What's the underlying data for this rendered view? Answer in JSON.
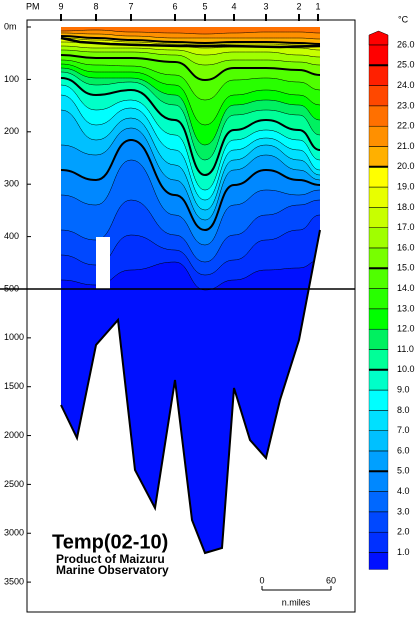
{
  "header": {
    "station_prefix": "PM",
    "stations": [
      "9",
      "8",
      "7",
      "6",
      "5",
      "4",
      "3",
      "2",
      "1"
    ]
  },
  "depth_axis": {
    "ticks": [
      {
        "value": 0,
        "label": "0m"
      },
      100,
      200,
      300,
      400,
      500,
      1000,
      1500,
      2000,
      2500,
      3000,
      3500
    ]
  },
  "colorbar": {
    "unit": "°C",
    "levels": [
      {
        "value": 26,
        "label": "26.0"
      },
      {
        "value": 25,
        "label": "25.0"
      },
      {
        "value": 24,
        "label": "24.0"
      },
      {
        "value": 23,
        "label": "23.0"
      },
      {
        "value": 22,
        "label": "22.0"
      },
      {
        "value": 21,
        "label": "21.0"
      },
      {
        "value": 20,
        "label": "20.0"
      },
      {
        "value": 19,
        "label": "19.0"
      },
      {
        "value": 18,
        "label": "18.0"
      },
      {
        "value": 17,
        "label": "17.0"
      },
      {
        "value": 16,
        "label": "16.0"
      },
      {
        "value": 15,
        "label": "15.0"
      },
      {
        "value": 14,
        "label": "14.0"
      },
      {
        "value": 13,
        "label": "13.0"
      },
      {
        "value": 12,
        "label": "12.0"
      },
      {
        "value": 11,
        "label": "11.0"
      },
      {
        "value": 10,
        "label": "10.0"
      },
      {
        "value": 9,
        "label": "9.0"
      },
      {
        "value": 8,
        "label": "8.0"
      },
      {
        "value": 7,
        "label": "7.0"
      },
      {
        "value": 6,
        "label": "6.0"
      },
      {
        "value": 5,
        "label": "5.0"
      },
      {
        "value": 4,
        "label": "4.0"
      },
      {
        "value": 3,
        "label": "3.0"
      },
      {
        "value": 2,
        "label": "2.0"
      },
      {
        "value": 1,
        "label": "1.0"
      }
    ],
    "colors": [
      "#ff0000",
      "#ff0000",
      "#ff2000",
      "#ff4800",
      "#ff7000",
      "#ff9000",
      "#ffb000",
      "#ffff00",
      "#e8ff00",
      "#c8ff00",
      "#a0ff00",
      "#78ff00",
      "#50ff00",
      "#28ff00",
      "#00ff00",
      "#00f060",
      "#00ff98",
      "#00ffc8",
      "#00ffff",
      "#00e0ff",
      "#00c0ff",
      "#00a0ff",
      "#0088ff",
      "#0068ff",
      "#0048ff",
      "#0030ff",
      "#0010ff"
    ]
  },
  "title": "Temp(02-10)",
  "credit": [
    "Product of Maizuru",
    "Marine Observatory"
  ],
  "scale": {
    "labels": [
      "0",
      "60"
    ],
    "unit": "n.miles"
  }
}
